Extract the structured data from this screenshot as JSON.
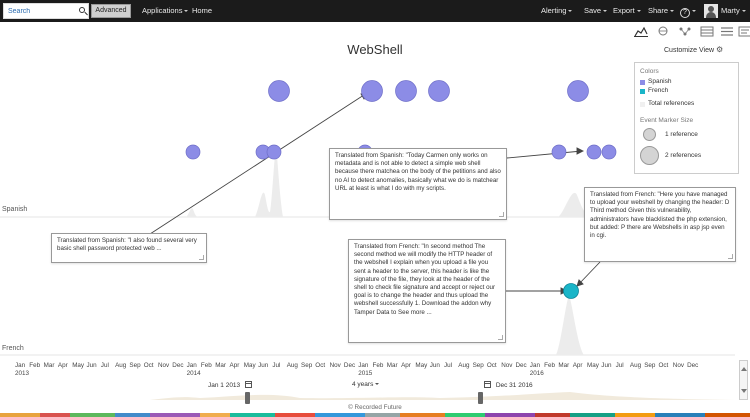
{
  "topbar": {
    "search_value": "Search",
    "advanced_label": "Advanced",
    "applications_label": "Applications",
    "home_label": "Home",
    "alerting_label": "Alerting",
    "save_label": "Save",
    "export_label": "Export",
    "share_label": "Share",
    "help_label": "?",
    "user_name": "Marty"
  },
  "chart": {
    "title": "WebShell",
    "customize_label": "Customize View",
    "rows": [
      "Spanish",
      "French"
    ]
  },
  "legend": {
    "colors_heading": "Colors",
    "spanish_label": "Spanish",
    "french_label": "French",
    "total_label": "Total references",
    "size_heading": "Event Marker Size",
    "one_ref_label": "1 reference",
    "two_ref_label": "2 references",
    "spanish_color": "#8c8ce6",
    "french_color": "#1ab5c8"
  },
  "callouts": [
    "Translated from Spanish: \"I also found several very basic shell password protected web ...",
    "Translated from Spanish: \"Today Carmen only works on metadata and is not able to detect a simple web shell because there matchea on the body of the petitions and also no AI to detect anomalies, basically what we do is matchear URL at least is what I do with my scripts.",
    "Translated from French: \"In second method The second method we will modify the HTTP header of the webshell I explain when you upload a file you sent a header to the server, this header is like the signature of the file, they look at the header of the shell to check file signature and accept or reject our goal is to change the header and thus upload the webshell successfully 1. Download the addon why Tamper Data to See more ...",
    "Translated from French: \"Here you have managed to upload your webshell by changing the header: D Third method Given this vulnerability, administrators have blacklisted the php extension, but added: P there are Webshells in asp jsp even in cgi."
  ],
  "axis": {
    "months": [
      "Jan",
      "Feb",
      "Mar",
      "Apr",
      "May",
      "Jun",
      "Jul",
      "Aug",
      "Sep",
      "Oct",
      "Nov",
      "Dec",
      "Jan",
      "Feb",
      "Mar",
      "Apr",
      "May",
      "Jun",
      "Jul",
      "Aug",
      "Sep",
      "Oct",
      "Nov",
      "Dec",
      "Jan",
      "Feb",
      "Mar",
      "Apr",
      "May",
      "Jun",
      "Jul",
      "Aug",
      "Sep",
      "Oct",
      "Nov",
      "Dec",
      "Jan",
      "Feb",
      "Mar",
      "Apr",
      "May",
      "Jun",
      "Jul",
      "Aug",
      "Sep",
      "Oct",
      "Nov",
      "Dec"
    ],
    "years": [
      "2013",
      "2014",
      "2015",
      "2016"
    ]
  },
  "range": {
    "start": "Jan 1 2013",
    "duration": "4 years",
    "end": "Dec 31 2016"
  },
  "footer": "© Recorded Future"
}
